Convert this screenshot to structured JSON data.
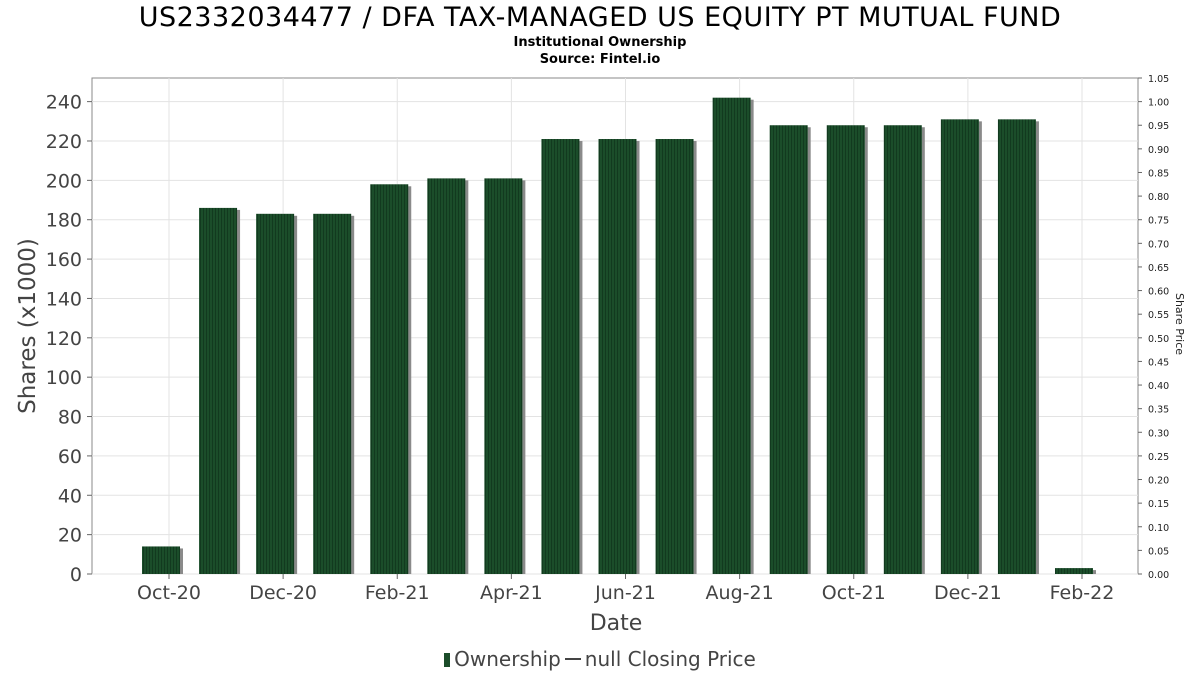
{
  "chart_data": {
    "type": "bar",
    "title": "US2332034477 / DFA TAX-MANAGED US EQUITY PT MUTUAL FUND",
    "subtitle": "Institutional Ownership",
    "source": "Source: Fintel.io",
    "xlabel": "Date",
    "ylabel": "Shares (x1000)",
    "y2label": "Share Price",
    "ylim": [
      0,
      252
    ],
    "yticks": [
      0,
      20,
      40,
      60,
      80,
      100,
      120,
      140,
      160,
      180,
      200,
      220,
      240
    ],
    "y2lim": [
      0.0,
      1.05
    ],
    "y2ticks": [
      "0.00",
      "0.05",
      "0.10",
      "0.15",
      "0.20",
      "0.25",
      "0.30",
      "0.35",
      "0.40",
      "0.45",
      "0.50",
      "0.55",
      "0.60",
      "0.65",
      "0.70",
      "0.75",
      "0.80",
      "0.85",
      "0.90",
      "0.95",
      "1.00",
      "1.05"
    ],
    "x_tick_labels": [
      "Oct-20",
      "Dec-20",
      "Feb-21",
      "Apr-21",
      "Jun-21",
      "Aug-21",
      "Oct-21",
      "Dec-21",
      "Feb-22"
    ],
    "grid": true,
    "legend_position": "bottom",
    "series": [
      {
        "name": "Ownership",
        "color": "#1b4d2a",
        "values": [
          14,
          186,
          183,
          183,
          198,
          201,
          201,
          221,
          221,
          221,
          242,
          228,
          228,
          228,
          231,
          231,
          3
        ]
      }
    ],
    "legend": [
      "Ownership",
      "null Closing Price"
    ]
  }
}
